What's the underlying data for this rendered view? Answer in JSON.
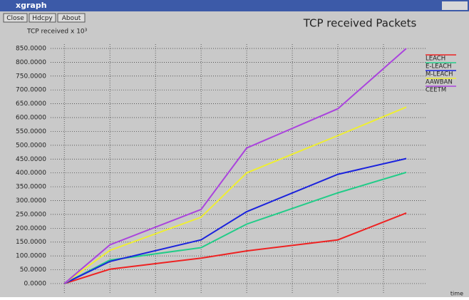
{
  "window": {
    "title": "xgraph",
    "buttons": [
      "Close",
      "Hdcpy",
      "About"
    ]
  },
  "chart_data": {
    "type": "line",
    "title": "TCP received Packets",
    "y_label": "TCP received x 10³",
    "x_label": "time",
    "x": [
      0,
      1,
      3,
      4,
      6,
      7.5
    ],
    "series": [
      {
        "name": "LEACH",
        "color": "#ee2222",
        "values": [
          0,
          52,
          92,
          118,
          158,
          255
        ]
      },
      {
        "name": "E-LEACH",
        "color": "#22cc88",
        "values": [
          0,
          85,
          130,
          215,
          328,
          402
        ]
      },
      {
        "name": "M-LEACH",
        "color": "#1a22dd",
        "values": [
          0,
          80,
          158,
          260,
          395,
          452
        ]
      },
      {
        "name": "AAWBAN",
        "color": "#eeee33",
        "values": [
          0,
          120,
          240,
          400,
          535,
          638
        ]
      },
      {
        "name": "CEETM",
        "color": "#aa44dd",
        "values": [
          0,
          140,
          268,
          490,
          632,
          850
        ]
      }
    ],
    "xlim": [
      -0.3,
      8
    ],
    "xticks": [
      0,
      1,
      2,
      3,
      4,
      5,
      6,
      7
    ],
    "ylim": [
      -30,
      870
    ],
    "yticks": [
      {
        "value": 0,
        "label": "0.0000"
      },
      {
        "value": 50,
        "label": "50.0000"
      },
      {
        "value": 100,
        "label": "100.0000"
      },
      {
        "value": 150,
        "label": "150.0000"
      },
      {
        "value": 200,
        "label": "200.0000"
      },
      {
        "value": 250,
        "label": "250.0000"
      },
      {
        "value": 300,
        "label": "300.0000"
      },
      {
        "value": 350,
        "label": "350.0000"
      },
      {
        "value": 400,
        "label": "400.0000"
      },
      {
        "value": 450,
        "label": "450.0000"
      },
      {
        "value": 500,
        "label": "500.0000"
      },
      {
        "value": 550,
        "label": "550.0000"
      },
      {
        "value": 600,
        "label": "600.0000"
      },
      {
        "value": 650,
        "label": "650.0000"
      },
      {
        "value": 700,
        "label": "700.0000"
      },
      {
        "value": 750,
        "label": "750.0000"
      },
      {
        "value": 800,
        "label": "800.0000"
      },
      {
        "value": 850,
        "label": "850.0000"
      }
    ],
    "grid": true
  }
}
